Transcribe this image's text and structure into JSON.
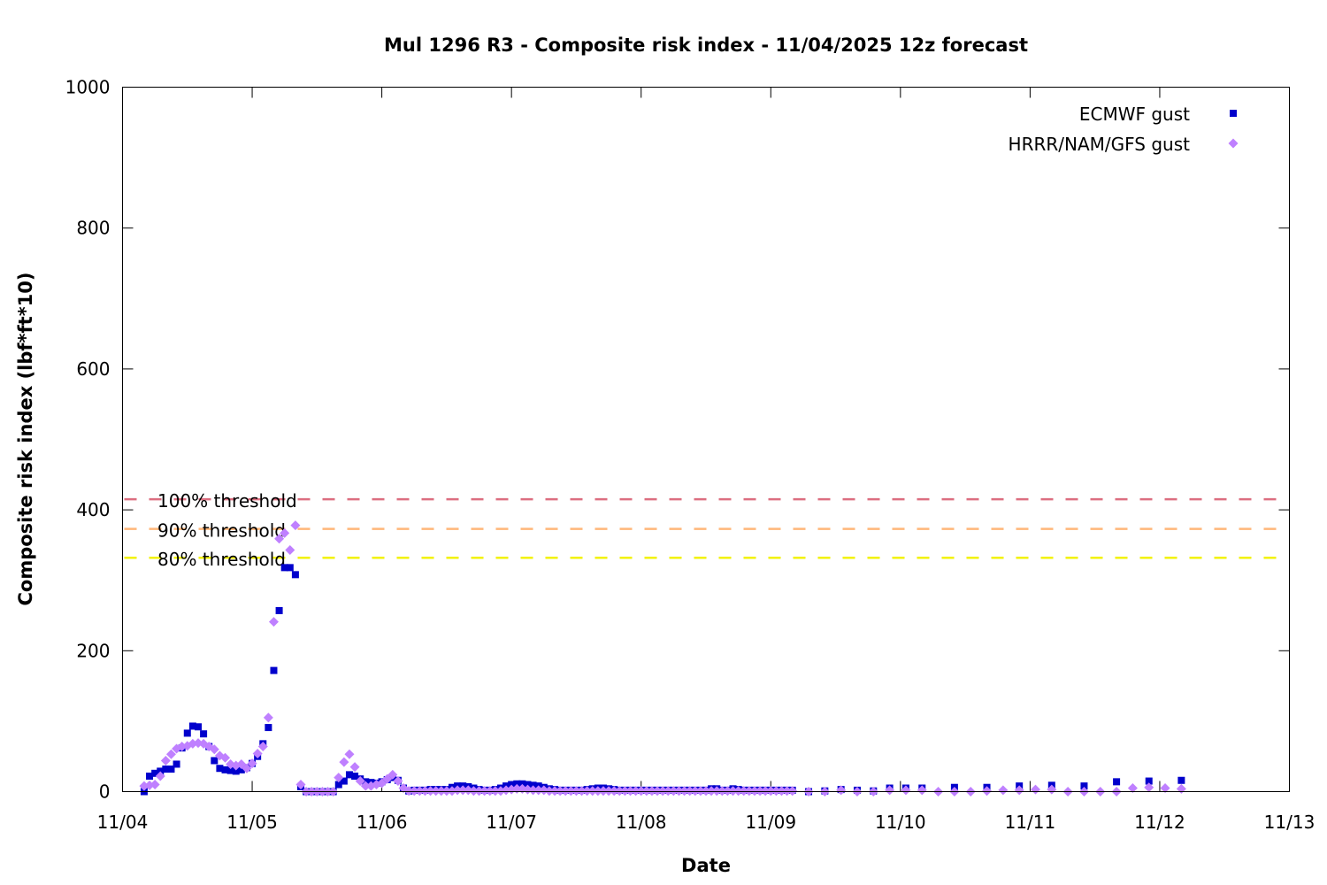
{
  "chart_data": {
    "type": "scatter",
    "title": "Mul 1296 R3 - Composite risk index - 11/04/2025 12z forecast",
    "xlabel": "Date",
    "ylabel": "Composite risk index (lbf*ft*10)",
    "xlim": [
      "11/04 00:00",
      "11/13 00:00"
    ],
    "ylim": [
      0,
      1000
    ],
    "x_ticks": [
      "11/04",
      "11/05",
      "11/06",
      "11/07",
      "11/08",
      "11/09",
      "11/10",
      "11/11",
      "11/12",
      "11/13"
    ],
    "y_ticks": [
      0,
      200,
      400,
      600,
      800,
      1000
    ],
    "grid": false,
    "legend_position": "top-right",
    "thresholds": [
      {
        "name": "100% threshold",
        "value": 415,
        "color": "#dc6e80"
      },
      {
        "name": "90% threshold",
        "value": 373,
        "color": "#ffb77a"
      },
      {
        "name": "80% threshold",
        "value": 332,
        "color": "#f2f200"
      }
    ],
    "series": [
      {
        "name": "ECMWF gust",
        "marker": "square",
        "color": "#0000cc",
        "hourly_start": "11/04 04:00",
        "hourly_values": [
          0,
          22,
          26,
          29,
          32,
          32,
          39,
          62,
          83,
          93,
          92,
          82,
          64,
          44,
          33,
          31,
          30,
          29,
          31,
          34,
          40,
          50,
          68,
          91,
          172,
          257,
          318,
          318,
          308,
          7,
          0,
          0,
          0,
          0,
          0,
          0,
          10,
          15,
          24,
          22,
          18,
          14,
          13,
          12,
          14,
          17,
          20,
          16,
          5,
          1,
          2,
          2,
          2,
          3,
          3,
          3,
          3,
          6,
          8,
          8,
          7,
          5,
          3,
          2,
          2,
          3,
          5,
          8,
          10,
          11,
          11,
          10,
          9,
          8,
          6,
          4,
          3,
          2,
          2,
          2,
          2,
          2,
          3,
          4,
          5,
          5,
          4,
          3,
          2,
          2,
          2,
          2,
          2,
          2,
          2,
          2,
          2,
          2,
          2,
          2,
          2,
          2,
          2,
          2,
          2,
          4,
          4,
          2,
          2,
          4,
          3,
          2,
          2,
          2,
          2,
          2,
          2,
          2,
          2,
          2,
          2
        ],
        "points": [
          [
            "11/09 07:00",
            0
          ],
          [
            "11/09 10:00",
            1
          ],
          [
            "11/09 13:00",
            3
          ],
          [
            "11/09 16:00",
            2
          ],
          [
            "11/09 19:00",
            1
          ],
          [
            "11/09 22:00",
            5
          ],
          [
            "11/10 01:00",
            5
          ],
          [
            "11/10 04:00",
            5
          ],
          [
            "11/10 10:00",
            6
          ],
          [
            "11/10 16:00",
            6
          ],
          [
            "11/10 22:00",
            8
          ],
          [
            "11/11 04:00",
            9
          ],
          [
            "11/11 10:00",
            8
          ],
          [
            "11/11 16:00",
            14
          ],
          [
            "11/11 22:00",
            15
          ],
          [
            "11/12 04:00",
            16
          ]
        ]
      },
      {
        "name": "HRRR/NAM/GFS gust",
        "marker": "diamond",
        "color": "#bf80ff",
        "hourly_start": "11/04 04:00",
        "hourly_values": [
          8,
          9,
          10,
          22,
          44,
          53,
          61,
          64,
          65,
          68,
          69,
          68,
          64,
          60,
          51,
          48,
          39,
          37,
          39,
          33,
          40,
          54,
          64,
          105,
          241,
          359,
          367,
          343,
          378,
          10,
          0,
          0,
          0,
          0,
          0,
          0,
          20,
          42,
          53,
          35,
          15,
          8,
          8,
          10,
          12,
          18,
          24,
          15,
          5,
          1,
          1,
          1,
          1,
          1,
          1,
          1,
          1,
          1,
          2,
          2,
          2,
          1,
          1,
          1,
          1,
          1,
          1,
          2,
          3,
          4,
          4,
          3,
          2,
          2,
          2,
          1,
          1,
          1,
          1,
          1,
          1,
          1,
          1,
          1,
          1,
          1,
          1,
          1,
          1,
          1,
          1,
          1,
          1,
          1,
          1,
          1,
          1,
          1,
          1,
          1,
          1,
          1,
          1,
          1,
          1,
          1,
          1,
          1,
          1,
          1,
          1,
          1,
          1,
          1,
          1,
          1,
          1,
          1,
          1,
          1,
          1
        ],
        "points": [
          [
            "11/09 07:00",
            0
          ],
          [
            "11/09 10:00",
            0
          ],
          [
            "11/09 13:00",
            2
          ],
          [
            "11/09 16:00",
            0
          ],
          [
            "11/09 19:00",
            0
          ],
          [
            "11/09 22:00",
            2
          ],
          [
            "11/10 01:00",
            2
          ],
          [
            "11/10 04:00",
            2
          ],
          [
            "11/10 07:00",
            0
          ],
          [
            "11/10 10:00",
            0
          ],
          [
            "11/10 13:00",
            0
          ],
          [
            "11/10 16:00",
            1
          ],
          [
            "11/10 19:00",
            2
          ],
          [
            "11/10 22:00",
            2
          ],
          [
            "11/11 01:00",
            3
          ],
          [
            "11/11 04:00",
            3
          ],
          [
            "11/11 07:00",
            0
          ],
          [
            "11/11 10:00",
            0
          ],
          [
            "11/11 13:00",
            0
          ],
          [
            "11/11 16:00",
            0
          ],
          [
            "11/11 19:00",
            5
          ],
          [
            "11/11 22:00",
            6
          ],
          [
            "11/12 01:00",
            5
          ],
          [
            "11/12 04:00",
            4
          ]
        ]
      }
    ]
  }
}
